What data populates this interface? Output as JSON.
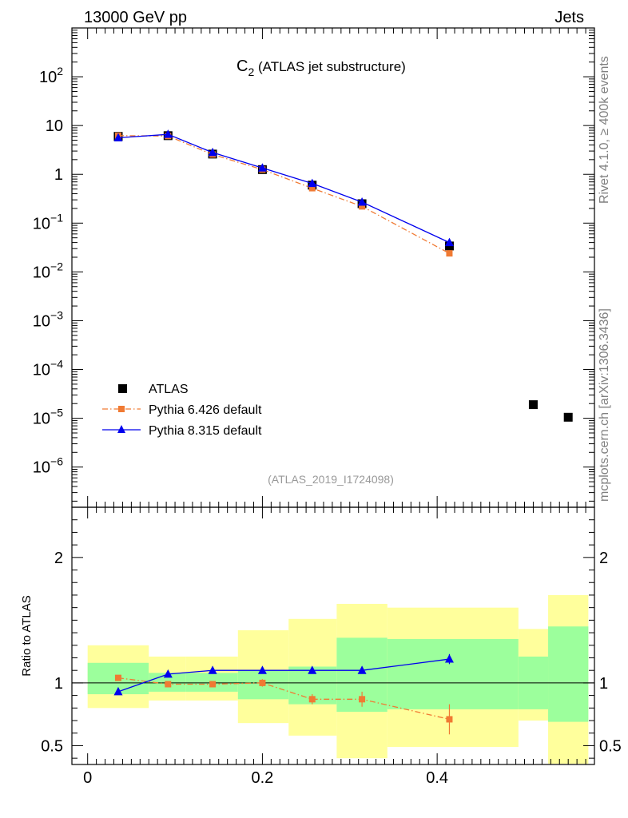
{
  "header": {
    "left": "13000 GeV pp",
    "right": "Jets"
  },
  "side": {
    "top": "Rivet 4.1.0, ≥ 400k events",
    "bottom": "mcplots.cern.ch [arXiv:1306.3436]"
  },
  "chart_data": {
    "type": "line",
    "title_main": "C",
    "title_sub": "2",
    "title_rest": " (ATLAS jet substructure)",
    "analysis_id": "(ATLAS_2019_I1724098)",
    "ratio_ylabel": "Ratio to ATLAS",
    "legend": [
      "ATLAS",
      "Pythia 6.426 default",
      "Pythia 8.315 default"
    ],
    "xlim": [
      -0.018,
      0.58
    ],
    "ylim_top": [
      1.5e-07,
      1000
    ],
    "ylim_ratio": [
      0.35,
      2.4
    ],
    "x_ticks": [
      0,
      0.2,
      0.4
    ],
    "x_tick_labels": [
      "0",
      "0.2",
      "0.4"
    ],
    "ratio_ticks": [
      0.5,
      1,
      2
    ],
    "ratio_tick_labels": [
      "0.5",
      "1",
      "2"
    ],
    "y_tick_labels": [
      {
        "base": "10",
        "exp": "2",
        "v": 100
      },
      {
        "base": "10",
        "exp": "",
        "v": 10
      },
      {
        "base": "1",
        "exp": "",
        "v": 1
      },
      {
        "base": "10",
        "exp": "−1",
        "v": 0.1
      },
      {
        "base": "10",
        "exp": "−2",
        "v": 0.01
      },
      {
        "base": "10",
        "exp": "−3",
        "v": 0.001
      },
      {
        "base": "10",
        "exp": "−4",
        "v": 0.0001
      },
      {
        "base": "10",
        "exp": "−5",
        "v": 1e-05
      },
      {
        "base": "10",
        "exp": "−6",
        "v": 1e-06
      }
    ],
    "bins": [
      {
        "lo": 0.0,
        "hi": 0.07,
        "x": 0.035,
        "data": 6.0,
        "inner": [
          0.91,
          1.16
        ],
        "outer": [
          0.8,
          1.3
        ]
      },
      {
        "lo": 0.07,
        "hi": 0.112,
        "x": 0.092,
        "data": 6.2,
        "inner": [
          0.93,
          1.08
        ],
        "outer": [
          0.86,
          1.21
        ]
      },
      {
        "lo": 0.112,
        "hi": 0.172,
        "x": 0.143,
        "data": 2.6,
        "inner": [
          0.93,
          1.08
        ],
        "outer": [
          0.86,
          1.21
        ]
      },
      {
        "lo": 0.172,
        "hi": 0.23,
        "x": 0.2,
        "data": 1.25,
        "inner": [
          0.87,
          1.1
        ],
        "outer": [
          0.68,
          1.42
        ]
      },
      {
        "lo": 0.23,
        "hi": 0.285,
        "x": 0.257,
        "data": 0.6,
        "inner": [
          0.83,
          1.13
        ],
        "outer": [
          0.58,
          1.51
        ]
      },
      {
        "lo": 0.285,
        "hi": 0.343,
        "x": 0.314,
        "data": 0.25,
        "inner": [
          0.77,
          1.36
        ],
        "outer": [
          0.4,
          1.63
        ]
      },
      {
        "lo": 0.343,
        "hi": 0.493,
        "x": 0.414,
        "data": 0.034,
        "inner": [
          0.79,
          1.35
        ],
        "outer": [
          0.49,
          1.6
        ]
      },
      {
        "lo": 0.493,
        "hi": 0.527,
        "x": 0.51,
        "data": 1.9e-05,
        "inner": [
          0.79,
          1.21
        ],
        "outer": [
          0.7,
          1.43
        ]
      },
      {
        "lo": 0.527,
        "hi": 0.573,
        "x": 0.55,
        "data": 1.05e-05,
        "inner": [
          0.69,
          1.45
        ],
        "outer": [
          0.3,
          1.7
        ]
      }
    ],
    "series": [
      {
        "name": "Pythia 6.426 default",
        "color": "#f07a33",
        "marker": "square",
        "dash": "dashdot",
        "x": [
          0.035,
          0.092,
          0.143,
          0.2,
          0.257,
          0.314,
          0.414
        ],
        "values": [
          6.2,
          6.1,
          2.55,
          1.25,
          0.52,
          0.22,
          0.024
        ],
        "ratio": [
          1.04,
          0.99,
          0.99,
          1.0,
          0.87,
          0.87,
          0.71
        ],
        "ratio_err": [
          0,
          0,
          0.01,
          0.03,
          0.04,
          0.06,
          0.12
        ]
      },
      {
        "name": "Pythia 8.315 default",
        "color": "#0000ee",
        "marker": "triangle",
        "dash": "solid",
        "x": [
          0.035,
          0.092,
          0.143,
          0.2,
          0.257,
          0.314,
          0.414
        ],
        "values": [
          5.6,
          6.6,
          2.8,
          1.35,
          0.65,
          0.27,
          0.04
        ],
        "ratio": [
          0.93,
          1.07,
          1.1,
          1.1,
          1.1,
          1.1,
          1.19
        ],
        "ratio_err": [
          0,
          0,
          0,
          0,
          0,
          0.02,
          0.04
        ]
      }
    ],
    "colors": {
      "data": "#000000",
      "band_inner": "#9cff9c",
      "band_outer": "#ffff9c"
    }
  }
}
